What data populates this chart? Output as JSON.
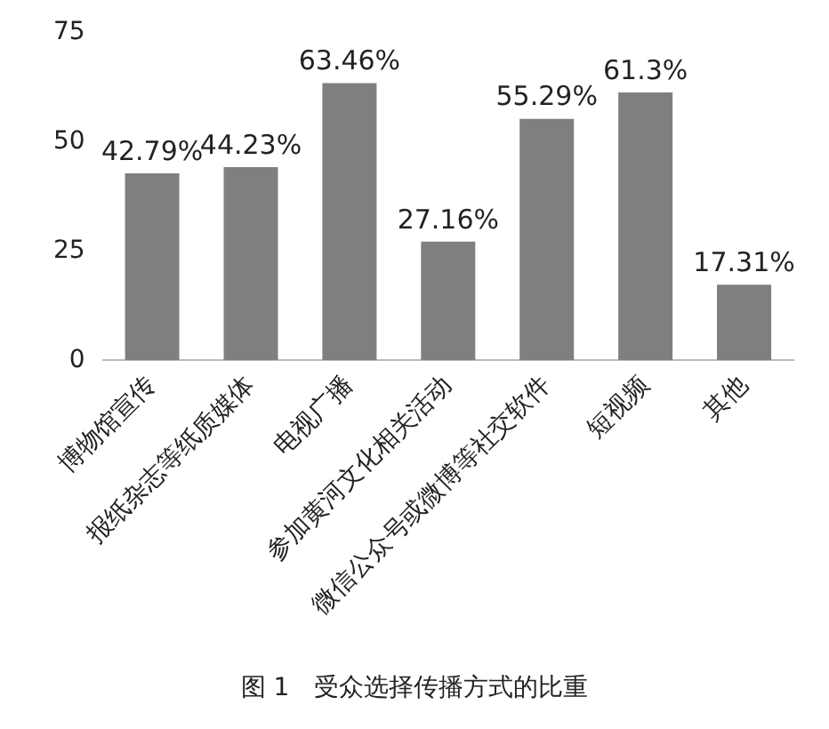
{
  "chart_data": {
    "type": "bar",
    "title": "图 1　受众选择传播方式的比重",
    "categories": [
      "博物馆宣传",
      "报纸杂志等纸质媒体",
      "电视广播",
      "参加黄河文化相关活动",
      "微信公众号或微博等社交软件",
      "短视频",
      "其他"
    ],
    "values": [
      42.79,
      44.23,
      63.46,
      27.16,
      55.29,
      61.3,
      17.31
    ],
    "value_labels": [
      "42.79%",
      "44.23%",
      "63.46%",
      "27.16%",
      "55.29%",
      "61.3%",
      "17.31%"
    ],
    "color": "#7f7f7f",
    "ylim": [
      0,
      75
    ],
    "yticks": [
      0,
      25,
      50,
      75
    ],
    "grid": false,
    "legend": false
  }
}
